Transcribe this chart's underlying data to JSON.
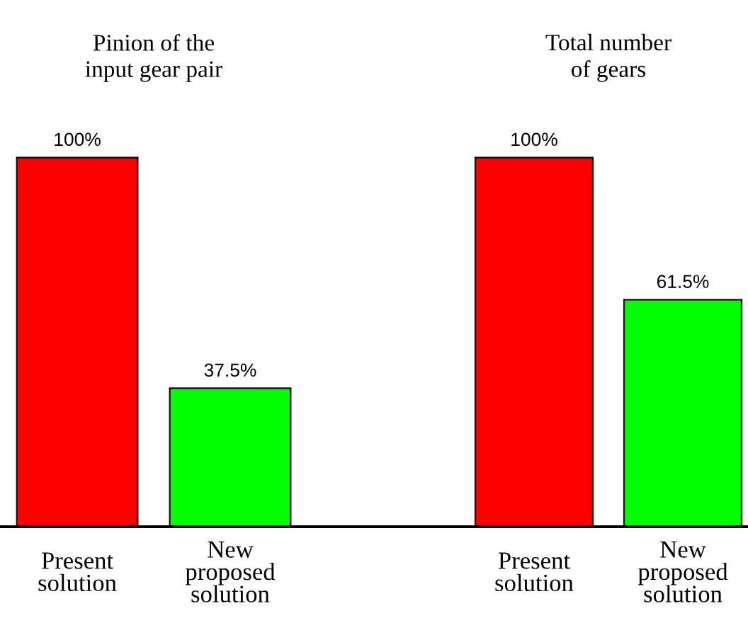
{
  "chart_data": [
    {
      "type": "bar",
      "title": "Pinion of the\ninput gear pair",
      "categories": [
        "Present solution",
        "New proposed solution"
      ],
      "values": [
        100,
        37.5
      ],
      "colors": [
        "#ff0000",
        "#00ff00"
      ],
      "value_labels": [
        "100%",
        "37.5%"
      ]
    },
    {
      "type": "bar",
      "title": "Total number\nof gears",
      "categories": [
        "Present solution",
        "New proposed solution"
      ],
      "values": [
        100,
        61.5
      ],
      "colors": [
        "#ff0000",
        "#00ff00"
      ],
      "value_labels": [
        "100%",
        "61.5%"
      ]
    }
  ]
}
